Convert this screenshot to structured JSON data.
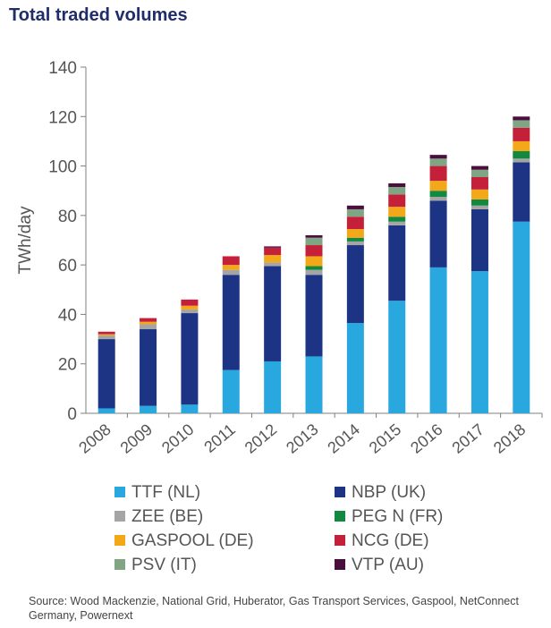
{
  "title": "Total traded volumes",
  "source": "Source: Wood Mackenzie, National Grid, Huberator, Gas Transport Services, Gaspool, NetConnect Germany, Powernext",
  "chart_data": {
    "type": "bar",
    "stacked": true,
    "title": "Total traded volumes",
    "ylabel": "TWh/day",
    "xlabel": "",
    "ylim": [
      0,
      140
    ],
    "yticks": [
      0,
      20,
      40,
      60,
      80,
      100,
      120,
      140
    ],
    "grid": false,
    "legend_position": "bottom",
    "categories": [
      "2008",
      "2009",
      "2010",
      "2011",
      "2012",
      "2013",
      "2014",
      "2015",
      "2016",
      "2017",
      "2018"
    ],
    "series": [
      {
        "name": "TTF (NL)",
        "color": "#29a8e0",
        "values": [
          2,
          3,
          3.5,
          17.5,
          21,
          23,
          36.5,
          45.5,
          59,
          57.5,
          77.5
        ]
      },
      {
        "name": "NBP (UK)",
        "color": "#1d3484",
        "values": [
          28,
          31,
          37,
          38.5,
          38.5,
          33,
          31.5,
          30.5,
          27,
          25,
          24
        ]
      },
      {
        "name": "ZEE (BE)",
        "color": "#a5a5a5",
        "values": [
          1.5,
          2,
          1.5,
          2,
          1.5,
          2,
          1.5,
          1.5,
          1.5,
          1.5,
          1.5
        ]
      },
      {
        "name": "PEG N (FR)",
        "color": "#12893f",
        "values": [
          0,
          0,
          0,
          0,
          0,
          1.5,
          1.5,
          2,
          2.5,
          2.5,
          3
        ]
      },
      {
        "name": "GASPOOL (DE)",
        "color": "#f2a818",
        "values": [
          0.5,
          1,
          1.5,
          2,
          3,
          4,
          3.5,
          4,
          4,
          4,
          4
        ]
      },
      {
        "name": "NCG (DE)",
        "color": "#c5203a",
        "values": [
          1,
          1.5,
          2.5,
          3.5,
          3,
          4.5,
          5,
          5,
          6,
          5,
          5.5
        ]
      },
      {
        "name": "PSV (IT)",
        "color": "#7fa585",
        "values": [
          0,
          0,
          0,
          0,
          0,
          3,
          3,
          3,
          3,
          3,
          3
        ]
      },
      {
        "name": "VTP (AU)",
        "color": "#4a0f3c",
        "values": [
          0,
          0,
          0,
          0,
          0.5,
          1,
          1.5,
          1.5,
          1.5,
          1.5,
          1.5
        ]
      }
    ]
  }
}
